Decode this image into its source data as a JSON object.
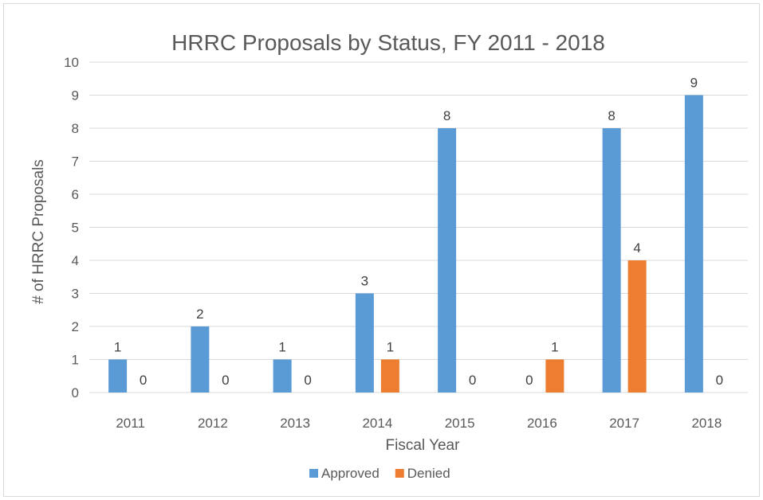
{
  "chart_data": {
    "type": "bar",
    "title": "HRRC Proposals by Status, FY 2011 - 2018",
    "xlabel": "Fiscal Year",
    "ylabel": "# of HRRC Proposals",
    "ylim": [
      0,
      10
    ],
    "yticks": [
      0,
      1,
      2,
      3,
      4,
      5,
      6,
      7,
      8,
      9,
      10
    ],
    "grid": true,
    "legend_position": "bottom",
    "categories": [
      "2011",
      "2012",
      "2013",
      "2014",
      "2015",
      "2016",
      "2017",
      "2018"
    ],
    "series": [
      {
        "name": "Approved",
        "color": "#5b9bd5",
        "values": [
          1,
          2,
          1,
          3,
          8,
          0,
          8,
          9
        ]
      },
      {
        "name": "Denied",
        "color": "#ed7d31",
        "values": [
          0,
          0,
          0,
          1,
          0,
          1,
          4,
          0
        ]
      }
    ],
    "data_labels": true
  }
}
